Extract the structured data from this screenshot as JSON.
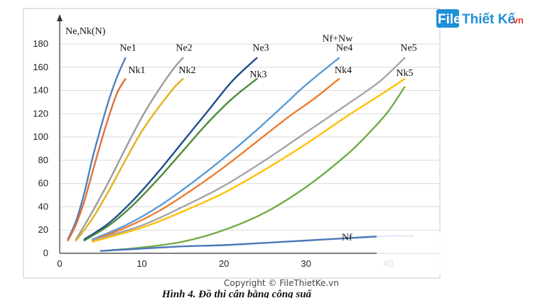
{
  "watermark_logo": {
    "brand": "FileThietKe.vn",
    "part1": "File",
    "part2": "Thiết Kế",
    "part3": ".vn",
    "colors": {
      "box": "#1f8fd6",
      "text": "#1f8fd6",
      "accent": "#e63a2f"
    }
  },
  "watermark_text": "Copyright © FileThietKe.vn",
  "caption": "Hình 4. Đồ thị cân bằng công suấ",
  "chart_data": {
    "type": "line",
    "ylabel": "Ne,Nk(N)",
    "xlabel": "",
    "xlim": [
      0,
      45
    ],
    "ylim": [
      0,
      180
    ],
    "xticks": [
      0,
      10,
      20,
      30,
      40
    ],
    "yticks": [
      0,
      20,
      40,
      60,
      80,
      100,
      120,
      140,
      160,
      180
    ],
    "grid": "horizontal",
    "legend": "inline labels",
    "series": [
      {
        "name": "Ne1",
        "color": "#4f81bd",
        "x": [
          1,
          2,
          3,
          4,
          5,
          6,
          7,
          8
        ],
        "y": [
          12,
          28,
          52,
          82,
          108,
          132,
          152,
          168
        ]
      },
      {
        "name": "Nk1",
        "color": "#e0703a",
        "x": [
          1,
          2,
          3,
          4,
          5,
          6,
          7,
          8
        ],
        "y": [
          11,
          25,
          45,
          70,
          95,
          118,
          138,
          150
        ]
      },
      {
        "name": "Ne2",
        "color": "#9b9b9b",
        "x": [
          2,
          4,
          6,
          8,
          10,
          12,
          14,
          15
        ],
        "y": [
          12,
          36,
          62,
          90,
          117,
          140,
          160,
          168
        ]
      },
      {
        "name": "Nk2",
        "color": "#e1b21a",
        "x": [
          2,
          4,
          6,
          8,
          10,
          12,
          14,
          15
        ],
        "y": [
          11,
          30,
          54,
          80,
          105,
          125,
          143,
          150
        ]
      },
      {
        "name": "Ne3",
        "color": "#1f4e8c",
        "x": [
          3,
          6,
          9,
          12,
          15,
          18,
          21,
          24
        ],
        "y": [
          12,
          26,
          46,
          70,
          96,
          122,
          148,
          168
        ]
      },
      {
        "name": "Nk3",
        "color": "#4e8a3a",
        "x": [
          3,
          6,
          9,
          12,
          15,
          18,
          21,
          24
        ],
        "y": [
          11,
          24,
          42,
          64,
          88,
          112,
          133,
          150
        ]
      },
      {
        "name": "Ne4",
        "color": "#5a9bd5",
        "x": [
          4,
          8,
          12,
          16,
          20,
          24,
          28,
          30,
          34
        ],
        "y": [
          12,
          24,
          40,
          60,
          82,
          106,
          132,
          145,
          168
        ]
      },
      {
        "name": "Nk4",
        "color": "#ed7d31",
        "x": [
          4,
          8,
          12,
          16,
          20,
          24,
          28,
          31,
          34
        ],
        "y": [
          11,
          22,
          36,
          54,
          74,
          96,
          118,
          133,
          150
        ]
      },
      {
        "name": "Ne5",
        "color": "#a5a5a5",
        "x": [
          4,
          10,
          15,
          20,
          25,
          30,
          35,
          39,
          42
        ],
        "y": [
          11,
          24,
          40,
          58,
          80,
          104,
          128,
          148,
          168
        ]
      },
      {
        "name": "Nk5",
        "color": "#ffc000",
        "x": [
          4,
          10,
          15,
          20,
          25,
          30,
          35,
          39,
          42
        ],
        "y": [
          10,
          22,
          36,
          52,
          72,
          94,
          118,
          136,
          150
        ]
      },
      {
        "name": "Nf+Nw",
        "color": "#70ad47",
        "x": [
          5,
          10,
          15,
          20,
          25,
          30,
          35,
          38,
          40,
          42
        ],
        "y": [
          2,
          5,
          10,
          20,
          35,
          57,
          85,
          106,
          122,
          143
        ]
      },
      {
        "name": "Nf",
        "color": "#4a78b8",
        "x": [
          5,
          10,
          15,
          20,
          25,
          30,
          35,
          40,
          42,
          43
        ],
        "y": [
          2,
          4,
          6,
          7,
          9,
          11,
          13,
          15,
          15,
          15
        ]
      }
    ]
  }
}
